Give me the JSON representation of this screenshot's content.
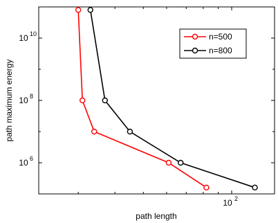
{
  "chart_data": {
    "type": "line",
    "xlabel": "path length",
    "ylabel": "path maximum energy",
    "xscale": "log",
    "yscale": "log",
    "xlim": [
      22,
      140
    ],
    "ylim": [
      100000,
      100000000000
    ],
    "x_ticks": [
      {
        "value": 100,
        "base": "10",
        "exp": "2"
      }
    ],
    "y_ticks": [
      {
        "value": 1000000,
        "base": "10",
        "exp": "6"
      },
      {
        "value": 100000000,
        "base": "10",
        "exp": "8"
      },
      {
        "value": 10000000000,
        "base": "10",
        "exp": "10"
      }
    ],
    "grid": false,
    "legend_position": "top-right",
    "series": [
      {
        "name": "n=500",
        "color": "#ff0000",
        "marker": "circle",
        "x": [
          30,
          31,
          34,
          61,
          82
        ],
        "y": [
          80000000000,
          100000000,
          10000000,
          1000000,
          160000
        ]
      },
      {
        "name": "n=800",
        "color": "#000000",
        "marker": "circle",
        "x": [
          33,
          37,
          45,
          67,
          120
        ],
        "y": [
          80000000000,
          100000000,
          10000000,
          1000000,
          160000
        ]
      }
    ]
  }
}
